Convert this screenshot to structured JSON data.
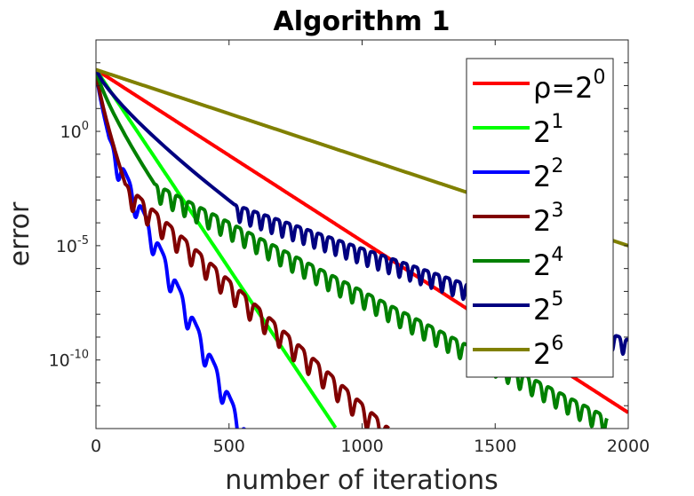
{
  "chart_data": {
    "type": "line",
    "title": "Algorithm 1",
    "xlabel": "number of iterations",
    "ylabel": "error",
    "xlim": [
      0,
      2000
    ],
    "ylim_exponent": [
      -13.0,
      4.0
    ],
    "y_scale": "log",
    "x_ticks": [
      0,
      500,
      1000,
      1500,
      2000
    ],
    "x_tick_labels": [
      "0",
      "500",
      "1000",
      "1500",
      "2000"
    ],
    "y_ticks": [
      {
        "base": "10",
        "exp": "0",
        "value": 0
      },
      {
        "base": "10",
        "exp": "-5",
        "value": -5
      },
      {
        "base": "10",
        "exp": "-10",
        "value": -10
      }
    ],
    "series": [
      {
        "name": "ρ=2⁰",
        "legend_prefix": "ρ=",
        "legend_base": "2",
        "legend_exp": "0",
        "color": "#ff0000",
        "start_log10": 2.7,
        "knee_x": 0,
        "knee_log10": 2.7,
        "slope_per_1000": -7.5,
        "end_x": 2000,
        "osc_period": 0,
        "osc_amp": 0
      },
      {
        "name": "2¹",
        "legend_prefix": "",
        "legend_base": "2",
        "legend_exp": "1",
        "color": "#00ff00",
        "start_log10": 2.7,
        "knee_x": 0,
        "knee_log10": 2.7,
        "slope_per_1000": -17.4,
        "end_x": 900,
        "osc_period": 0,
        "osc_amp": 0
      },
      {
        "name": "2²",
        "legend_prefix": "",
        "legend_base": "2",
        "legend_exp": "2",
        "color": "#0000ff",
        "start_log10": 2.7,
        "knee_x": 50,
        "knee_log10": -0.3,
        "slope_per_1000": -25.0,
        "end_x": 625,
        "osc_period": 65,
        "osc_amp": 1.0
      },
      {
        "name": "2³",
        "legend_prefix": "",
        "legend_base": "2",
        "legend_exp": "3",
        "color": "#800000",
        "start_log10": 2.7,
        "knee_x": 110,
        "knee_log10": -2.3,
        "slope_per_1000": -10.8,
        "end_x": 1100,
        "osc_period": 55,
        "osc_amp": 0.9
      },
      {
        "name": "2⁴",
        "legend_prefix": "",
        "legend_base": "2",
        "legend_exp": "4",
        "color": "#008000",
        "start_log10": 2.7,
        "knee_x": 220,
        "knee_log10": -2.3,
        "slope_per_1000": -6.0,
        "end_x": 1920,
        "osc_period": 45,
        "osc_amp": 0.75
      },
      {
        "name": "2⁵",
        "legend_prefix": "",
        "legend_base": "2",
        "legend_exp": "5",
        "color": "#000080",
        "start_log10": 2.7,
        "knee_x": 520,
        "knee_log10": -3.2,
        "slope_per_1000": -4.0,
        "end_x": 2000,
        "osc_period": 40,
        "osc_amp": 0.7
      },
      {
        "name": "2⁶",
        "legend_prefix": "",
        "legend_base": "2",
        "legend_exp": "6",
        "color": "#808000",
        "start_log10": 2.7,
        "knee_x": 0,
        "knee_log10": 2.7,
        "slope_per_1000": -3.85,
        "end_x": 2000,
        "osc_period": 0,
        "osc_amp": 0
      }
    ]
  }
}
